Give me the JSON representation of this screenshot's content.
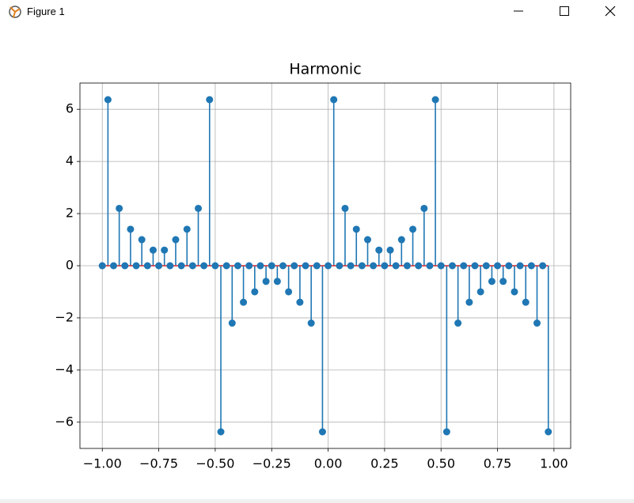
{
  "window": {
    "title": "Figure 1"
  },
  "chart_data": {
    "type": "stem",
    "title": "Harmonic",
    "x": [
      -1,
      -0.975,
      -0.95,
      -0.925,
      -0.9,
      -0.875,
      -0.85,
      -0.825,
      -0.8,
      -0.775,
      -0.75,
      -0.725,
      -0.7,
      -0.675,
      -0.65,
      -0.625,
      -0.6,
      -0.575,
      -0.55,
      -0.525,
      -0.5,
      -0.475,
      -0.45,
      -0.425,
      -0.4,
      -0.375,
      -0.35,
      -0.325,
      -0.3,
      -0.275,
      -0.25,
      -0.225,
      -0.2,
      -0.175,
      -0.15,
      -0.125,
      -0.1,
      -0.075,
      -0.05,
      -0.025,
      0,
      0.025,
      0.05,
      0.075,
      0.1,
      0.125,
      0.15,
      0.175,
      0.2,
      0.225,
      0.25,
      0.275,
      0.3,
      0.325,
      0.35,
      0.375,
      0.4,
      0.425,
      0.45,
      0.475,
      0.5,
      0.525,
      0.55,
      0.575,
      0.6,
      0.625,
      0.65,
      0.675,
      0.7,
      0.725,
      0.75,
      0.775,
      0.8,
      0.825,
      0.85,
      0.875,
      0.9,
      0.925,
      0.95,
      0.975
    ],
    "values": [
      0,
      6.37,
      0,
      2.2,
      0,
      1.4,
      0,
      1.0,
      0,
      0.6,
      0,
      0.6,
      0,
      1.0,
      0,
      1.4,
      0,
      2.2,
      0,
      6.37,
      0,
      -6.37,
      0,
      -2.2,
      0,
      -1.4,
      0,
      -1.0,
      0,
      -0.6,
      0,
      -0.6,
      0,
      -1.0,
      0,
      -1.4,
      0,
      -2.2,
      0,
      -6.37,
      0,
      6.37,
      0,
      2.2,
      0,
      1.4,
      0,
      1.0,
      0,
      0.6,
      0,
      0.6,
      0,
      1.0,
      0,
      1.4,
      0,
      2.2,
      0,
      6.37,
      0,
      -6.37,
      0,
      -2.2,
      0,
      -1.4,
      0,
      -1.0,
      0,
      -0.6,
      0,
      -0.6,
      0,
      -1.0,
      0,
      -1.4,
      0,
      -2.2,
      0,
      -6.37
    ],
    "color": "#1f77b4",
    "baseline_color": "#d62728",
    "xlim": [
      -1.099,
      1.074
    ],
    "ylim": [
      -7.007,
      7.007
    ],
    "xticks": [
      {
        "value": -1,
        "label": "−1.00"
      },
      {
        "value": -0.75,
        "label": "−0.75"
      },
      {
        "value": -0.5,
        "label": "−0.50"
      },
      {
        "value": -0.25,
        "label": "−0.25"
      },
      {
        "value": 0,
        "label": "0.00"
      },
      {
        "value": 0.25,
        "label": "0.25"
      },
      {
        "value": 0.5,
        "label": "0.50"
      },
      {
        "value": 0.75,
        "label": "0.75"
      },
      {
        "value": 1,
        "label": "1.00"
      }
    ],
    "yticks": [
      {
        "value": -6,
        "label": "−6"
      },
      {
        "value": -4,
        "label": "−4"
      },
      {
        "value": -2,
        "label": "−2"
      },
      0,
      2,
      4,
      6
    ],
    "grid": true
  }
}
